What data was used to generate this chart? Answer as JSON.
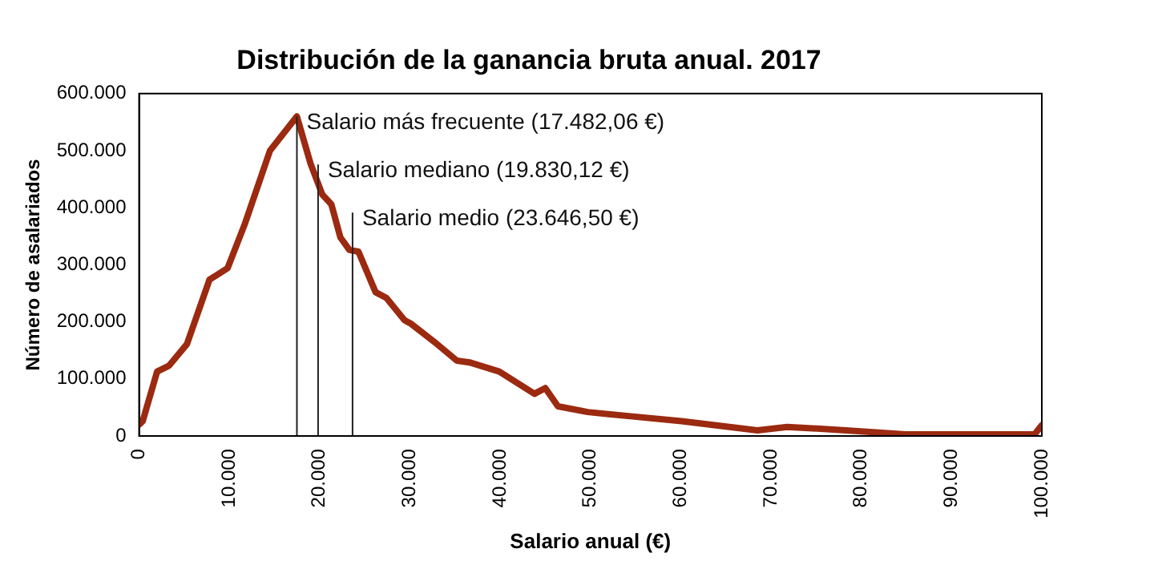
{
  "chart_data": {
    "type": "line",
    "title": "Distribución de la ganancia bruta anual. 2017",
    "xlabel": "Salario anual (€)",
    "ylabel": "Número de asalariados",
    "x": [
      0,
      400,
      2000,
      3300,
      5300,
      7800,
      8800,
      9800,
      11700,
      14500,
      17482.06,
      19000,
      20300,
      21300,
      22300,
      23300,
      24300,
      26200,
      27400,
      29400,
      30100,
      32700,
      35200,
      36600,
      39900,
      43800,
      45000,
      46400,
      49700,
      54200,
      60100,
      68500,
      71800,
      78300,
      84900,
      91400,
      99200,
      100000
    ],
    "series": [
      {
        "color": "#9b2a10",
        "values": [
          20000,
          26000,
          113000,
          123000,
          161000,
          274000,
          284000,
          294000,
          371000,
          500000,
          560000,
          477000,
          423000,
          406000,
          348000,
          326000,
          323000,
          252000,
          242000,
          203000,
          197000,
          165000,
          132000,
          129000,
          113000,
          74000,
          84000,
          52000,
          42000,
          35000,
          26000,
          10000,
          16000,
          10000,
          3000,
          3000,
          3000,
          19000
        ]
      }
    ],
    "xlim": [
      0,
      100000
    ],
    "ylim": [
      0,
      600000
    ],
    "xticks": [
      0,
      {
        "value": 10000,
        "label": "10.000"
      },
      {
        "value": 20000,
        "label": "20.000"
      },
      {
        "value": 30000,
        "label": "30.000"
      },
      {
        "value": 40000,
        "label": "40.000"
      },
      {
        "value": 50000,
        "label": "50.000"
      },
      {
        "value": 60000,
        "label": "60.000"
      },
      {
        "value": 70000,
        "label": "70.000"
      },
      {
        "value": 80000,
        "label": "80.000"
      },
      {
        "value": 90000,
        "label": "90.000"
      },
      {
        "value": 100000,
        "label": "100.000"
      }
    ],
    "yticks": [
      0,
      {
        "value": 100000,
        "label": "100.000"
      },
      {
        "value": 200000,
        "label": "200.000"
      },
      {
        "value": 300000,
        "label": "300.000"
      },
      {
        "value": 400000,
        "label": "400.000"
      },
      {
        "value": 500000,
        "label": "500.000"
      },
      {
        "value": 600000,
        "label": "600.000"
      }
    ],
    "ref_lines": [
      {
        "axis": "x",
        "value": 17482.06,
        "label": "Salario más frecuente (17.482,06 €)",
        "color": "#222222"
      },
      {
        "axis": "x",
        "value": 19830.12,
        "label": "Salario mediano (19.830,12 €)",
        "color": "#222222"
      },
      {
        "axis": "x",
        "value": 23646.5,
        "label": "Salario medio (23.646,50 €)",
        "color": "#222222"
      }
    ],
    "grid": false,
    "legend": false,
    "marker": "none",
    "line_style": "solid"
  }
}
